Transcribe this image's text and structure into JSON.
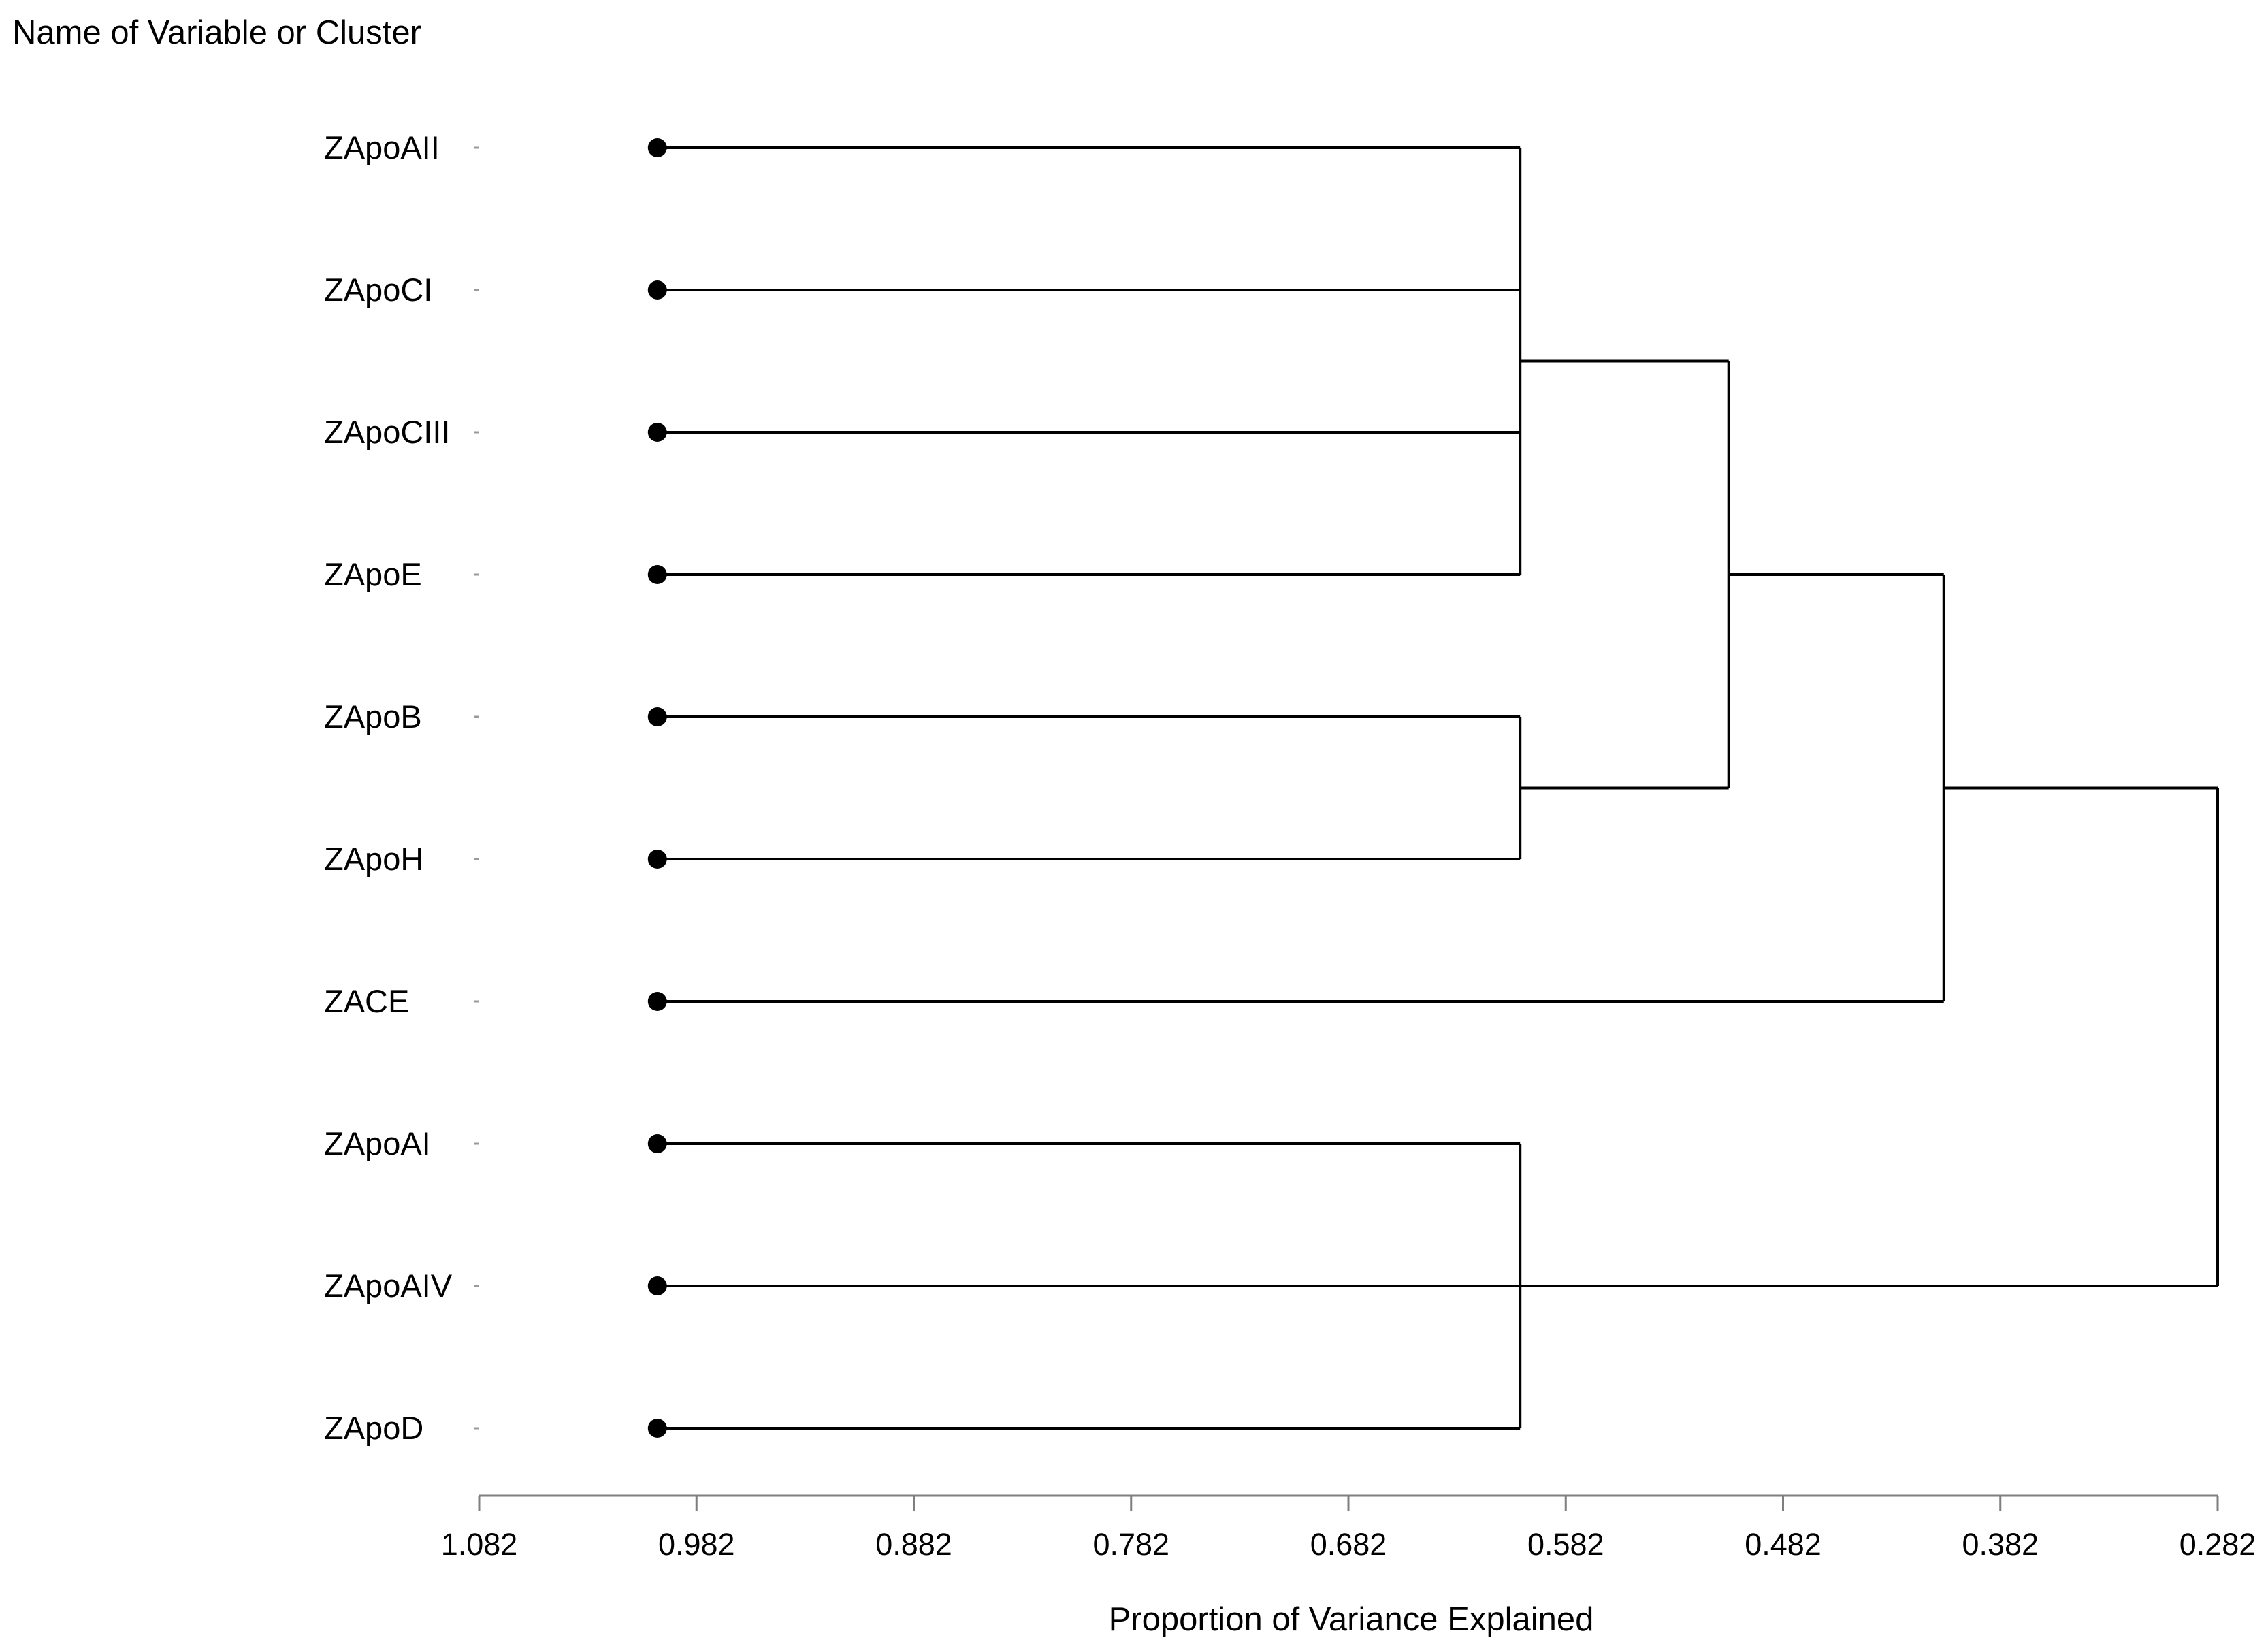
{
  "chart_data": {
    "type": "dendrogram",
    "orientation": "horizontal",
    "y_axis_title": "Name of Variable or Cluster",
    "x_axis_title": "Proportion of Variance Explained",
    "xlim": [
      1.082,
      0.282
    ],
    "x_ticks": [
      "1.082",
      "0.982",
      "0.882",
      "0.782",
      "0.682",
      "0.582",
      "0.482",
      "0.382",
      "0.282"
    ],
    "leaves": [
      "ZApoAII",
      "ZApoCI",
      "ZApoCIII",
      "ZApoE",
      "ZApoB",
      "ZApoH",
      "ZACE",
      "ZApoAI",
      "ZApoAIV",
      "ZApoD"
    ],
    "leaf_start_value": 1.0,
    "merges": [
      {
        "members": [
          "ZApoAII",
          "ZApoCI",
          "ZApoCIII",
          "ZApoE"
        ],
        "value": 0.603
      },
      {
        "members": [
          "ZApoB",
          "ZApoH"
        ],
        "value": 0.603
      },
      {
        "members": [
          "ZApoAI",
          "ZApoD"
        ],
        "value": 0.603
      },
      {
        "members": [
          "ZApoAII",
          "ZApoCI",
          "ZApoCIII",
          "ZApoE",
          "ZApoB",
          "ZApoH"
        ],
        "value": 0.507
      },
      {
        "members": [
          "ZApoAII",
          "ZApoCI",
          "ZApoCIII",
          "ZApoE",
          "ZApoB",
          "ZApoH",
          "ZACE"
        ],
        "value": 0.408
      },
      {
        "members": [
          "ZApoAII",
          "ZApoCI",
          "ZApoCIII",
          "ZApoE",
          "ZApoB",
          "ZApoH",
          "ZACE",
          "ZApoAIV"
        ],
        "value": 0.282
      }
    ],
    "grid": false,
    "colors": {
      "lines": "#000000",
      "axis": "#7f7f7f"
    }
  }
}
